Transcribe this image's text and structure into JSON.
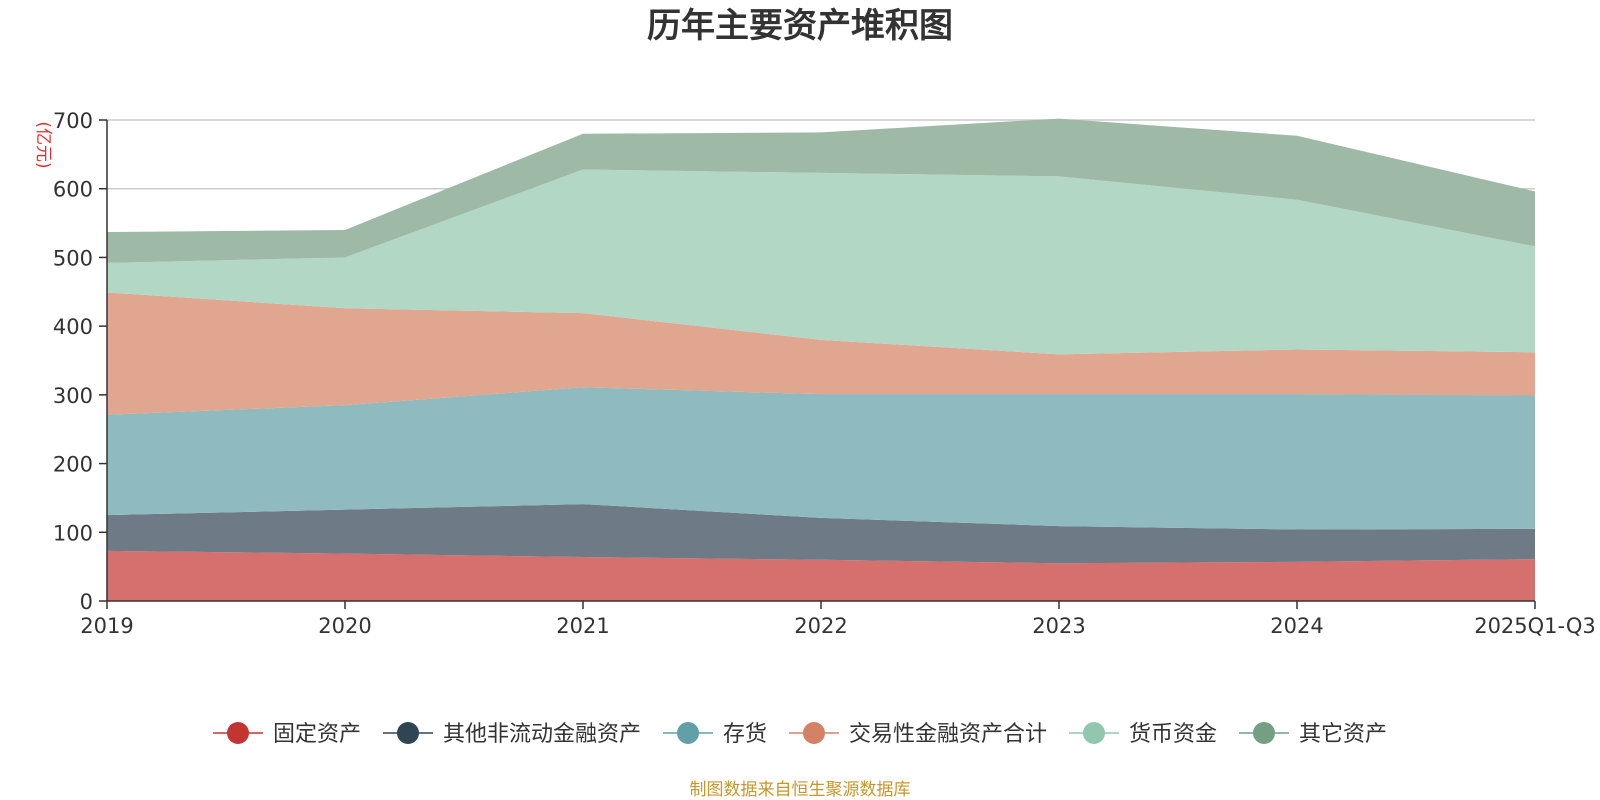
{
  "chart_data": {
    "type": "area",
    "stacked": true,
    "title": "历年主要资产堆积图",
    "unit_label": "(亿元)",
    "xlabel": "",
    "ylabel": "(亿元)",
    "ylim": [
      0,
      700
    ],
    "yticks": [
      0,
      100,
      200,
      300,
      400,
      500,
      600,
      700
    ],
    "grid": true,
    "categories": [
      "2019",
      "2020",
      "2021",
      "2022",
      "2023",
      "2024",
      "2025Q1-Q3"
    ],
    "series": [
      {
        "name": "固定资产",
        "color": "#d5706e",
        "marker_color": "#c23531",
        "values": [
          73,
          69,
          64,
          60,
          55,
          57,
          61
        ]
      },
      {
        "name": "其他非流动金融资产",
        "color": "#6e7a86",
        "marker_color": "#2f4554",
        "values": [
          52,
          64,
          77,
          61,
          54,
          47,
          44
        ]
      },
      {
        "name": "存货",
        "color": "#8fbac0",
        "marker_color": "#61a0a8",
        "values": [
          146,
          152,
          170,
          180,
          192,
          197,
          194
        ]
      },
      {
        "name": "交易性金融资产合计",
        "color": "#e0a68f",
        "marker_color": "#d48265",
        "values": [
          178,
          141,
          108,
          79,
          58,
          65,
          63
        ]
      },
      {
        "name": "货币资金",
        "color": "#b2d8c5",
        "marker_color": "#91c7ae",
        "values": [
          43,
          74,
          209,
          243,
          259,
          218,
          154
        ]
      },
      {
        "name": "其它资产",
        "color": "#9eb9a6",
        "marker_color": "#749f83",
        "values": [
          45,
          40,
          52,
          59,
          84,
          93,
          80
        ]
      }
    ],
    "legend_position": "bottom-center",
    "source": "制图数据来自恒生聚源数据库"
  }
}
